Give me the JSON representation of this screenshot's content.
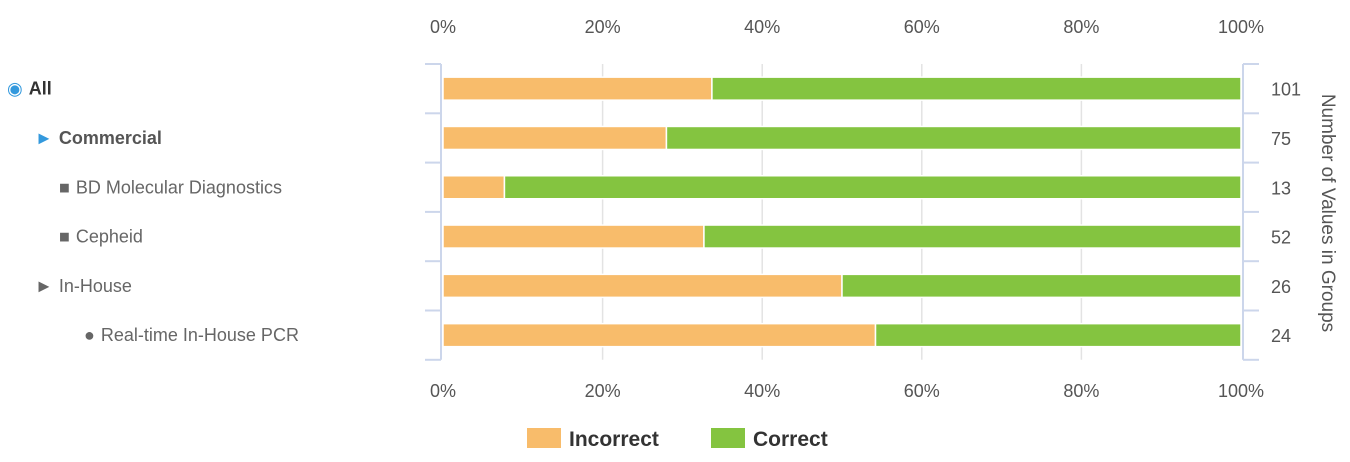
{
  "chart_data": {
    "type": "bar",
    "stacked": true,
    "orientation": "horizontal",
    "percent_scale": true,
    "categories": [
      {
        "label": "All",
        "marker": "◉",
        "level": 0,
        "bold": true,
        "color": "#333333",
        "marker_color": "#3399dd"
      },
      {
        "label": "Commercial",
        "marker": "►",
        "level": 1,
        "bold": true,
        "color": "#555555",
        "marker_color": "#3399dd"
      },
      {
        "label": "BD Molecular Diagnostics",
        "marker": "■",
        "level": 2,
        "bold": false,
        "color": "#666666",
        "marker_color": "#666666"
      },
      {
        "label": "Cepheid",
        "marker": "■",
        "level": 2,
        "bold": false,
        "color": "#666666",
        "marker_color": "#666666"
      },
      {
        "label": "In-House",
        "marker": "►",
        "level": 1,
        "bold": false,
        "color": "#666666",
        "marker_color": "#666666"
      },
      {
        "label": "Real-time In-House PCR",
        "marker": "●",
        "level": 3,
        "bold": false,
        "color": "#666666",
        "marker_color": "#666666"
      }
    ],
    "series": [
      {
        "name": "Incorrect",
        "color": "#f8bc6b",
        "values": [
          33.7,
          28.0,
          7.7,
          32.7,
          50.0,
          54.2
        ]
      },
      {
        "name": "Correct",
        "color": "#84c440",
        "values": [
          66.3,
          72.0,
          92.3,
          67.3,
          50.0,
          45.8
        ]
      }
    ],
    "group_counts": [
      "101",
      "75",
      "13",
      "52",
      "26",
      "24"
    ],
    "x_ticks": [
      "0%",
      "20%",
      "40%",
      "60%",
      "80%",
      "100%"
    ],
    "xlim": [
      0,
      100
    ],
    "right_axis_title": "Number of Values in Groups",
    "grid": true,
    "legend_position": "bottom",
    "legend_items": [
      "Incorrect",
      "Correct"
    ]
  }
}
